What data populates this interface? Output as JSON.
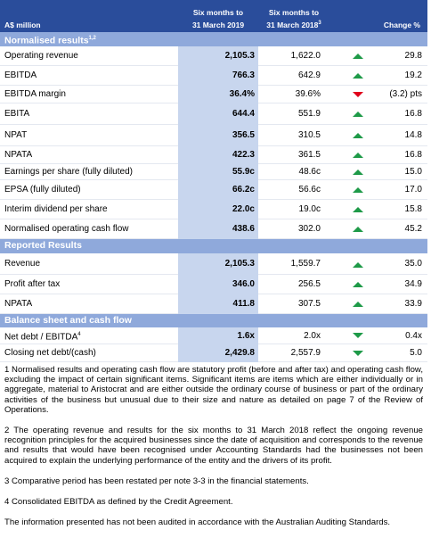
{
  "table": {
    "header": {
      "label": "A$ million",
      "current": [
        "Six months to",
        "31 March 2019"
      ],
      "prior": [
        "Six months to",
        "31 March 2018"
      ],
      "prior_note": "3",
      "change": "Change %"
    },
    "sections": [
      {
        "title": "Normalised results",
        "note": "1,2",
        "rows": [
          {
            "label": "Operating revenue",
            "current": "2,105.3",
            "prior": "1,622.0",
            "change": "29.8"
          },
          {
            "label": "EBITDA",
            "current": "766.3",
            "prior": "642.9",
            "change": "19.2"
          },
          {
            "label": "EBITDA margin",
            "current": "36.4%",
            "prior": "39.6%",
            "change": "(3.2) pts"
          },
          {
            "label": "EBITA",
            "current": "644.4",
            "prior": "551.9",
            "change": "16.8"
          },
          {
            "label": "NPAT",
            "current": "356.5",
            "prior": "310.5",
            "change": "14.8"
          },
          {
            "label": "NPATA",
            "current": "422.3",
            "prior": "361.5",
            "change": "16.8"
          },
          {
            "label": "Earnings per share (fully diluted)",
            "current": "55.9c",
            "prior": "48.6c",
            "change": "15.0"
          },
          {
            "label": "EPSA (fully diluted)",
            "current": "66.2c",
            "prior": "56.6c",
            "change": "17.0"
          },
          {
            "label": "Interim dividend per share",
            "current": "22.0c",
            "prior": "19.0c",
            "change": "15.8"
          },
          {
            "label": "Normalised operating cash flow",
            "current": "438.6",
            "prior": "302.0",
            "change": "45.2"
          }
        ]
      },
      {
        "title": "Reported Results",
        "rows": [
          {
            "label": "Revenue",
            "current": "2,105.3",
            "prior": "1,559.7",
            "change": "35.0"
          },
          {
            "label": "Profit after tax",
            "current": "346.0",
            "prior": "256.5",
            "change": "34.9"
          },
          {
            "label": "NPATA",
            "current": "411.8",
            "prior": "307.5",
            "change": "33.9"
          }
        ]
      },
      {
        "title": "Balance sheet and cash flow",
        "rows": [
          {
            "label": "Net debt / EBITDA",
            "note": "4",
            "current": "1.6x",
            "prior": "2.0x",
            "change": "0.4x"
          },
          {
            "label": "Closing net debt/(cash)",
            "current": "2,429.8",
            "prior": "2,557.9",
            "change": "5.0"
          }
        ]
      }
    ]
  },
  "footnotes": [
    "1 Normalised results and operating cash flow are statutory profit (before and after tax) and operating cash flow, excluding the impact of certain significant items. Significant items are items which are either individually or in aggregate, material to Aristocrat and are either outside the ordinary course of business or part of the ordinary activities of the business but unusual due to their size and nature as detailed on page 7 of the Review of Operations.",
    "2 The operating revenue and results for the six months to 31 March 2018 reflect the ongoing revenue recognition principles for the acquired businesses since the date of acquisition and corresponds to the revenue and results that would have been recognised under Accounting Standards had the businesses not been acquired to explain the underlying performance of the entity and the drivers of its profit.",
    "3 Comparative period has been restated per note 3-3 in the financial statements.",
    "4 Consolidated EBITDA as defined by the Credit Agreement.",
    "The information presented has not been audited in accordance with the Australian Auditing Standards."
  ]
}
